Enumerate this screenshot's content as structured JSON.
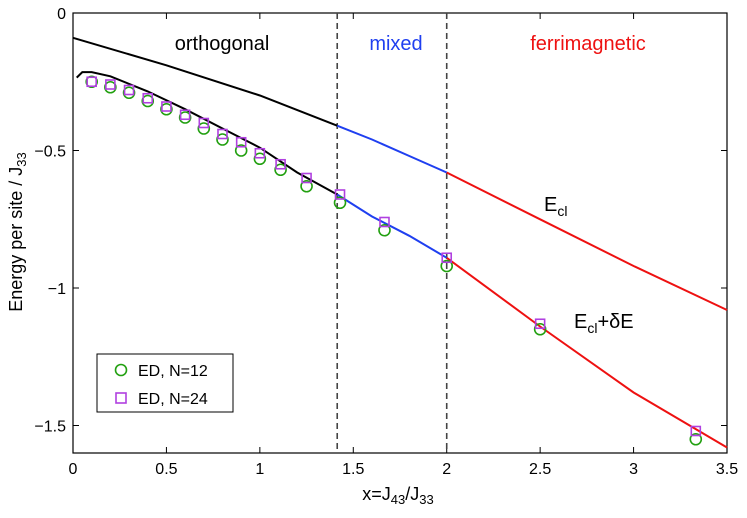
{
  "chart_data": {
    "type": "line",
    "xlim": [
      0,
      3.5
    ],
    "ylim": [
      -1.6,
      0
    ],
    "x_ticks": [
      "0",
      "0.5",
      "1",
      "1.5",
      "2",
      "2.5",
      "3",
      "3.5"
    ],
    "y_ticks": [
      "0",
      "−0.5",
      "−1",
      "−1.5"
    ],
    "x_tick_values": [
      0,
      0.5,
      1,
      1.5,
      2,
      2.5,
      3,
      3.5
    ],
    "y_tick_values": [
      0,
      -0.5,
      -1,
      -1.5
    ],
    "xlabel": {
      "main": "x=J",
      "sub1": "43",
      "mid": "/J",
      "sub2": "33"
    },
    "ylabel": {
      "main": "Energy per site / J",
      "sub": "33"
    },
    "phase_boundaries": [
      1.414,
      2.0
    ],
    "regions": [
      {
        "label": "orthogonal",
        "color": "#000000"
      },
      {
        "label": "mixed",
        "color": "#1f3ff0"
      },
      {
        "label": "ferrimagnetic",
        "color": "#ee1111"
      }
    ],
    "curve_labels": {
      "classical": {
        "main": "E",
        "sub": "cl"
      },
      "corrected": {
        "main": "E",
        "sub": "cl",
        "suffix": "+δE"
      }
    },
    "curves": [
      {
        "name": "E_cl",
        "segments": [
          {
            "color": "#000000",
            "points": [
              [
                0.0,
                -0.09
              ],
              [
                0.5,
                -0.19
              ],
              [
                1.0,
                -0.3
              ],
              [
                1.414,
                -0.41
              ]
            ]
          },
          {
            "color": "#1f3ff0",
            "points": [
              [
                1.414,
                -0.41
              ],
              [
                1.6,
                -0.46
              ],
              [
                1.8,
                -0.52
              ],
              [
                2.0,
                -0.58
              ]
            ]
          },
          {
            "color": "#ee1111",
            "points": [
              [
                2.0,
                -0.58
              ],
              [
                2.5,
                -0.75
              ],
              [
                3.0,
                -0.92
              ],
              [
                3.5,
                -1.08
              ]
            ]
          }
        ]
      },
      {
        "name": "E_cl+δE",
        "segments": [
          {
            "color": "#000000",
            "points": [
              [
                0.02,
                -0.235
              ],
              [
                0.05,
                -0.215
              ],
              [
                0.1,
                -0.215
              ],
              [
                0.2,
                -0.23
              ],
              [
                0.4,
                -0.285
              ],
              [
                0.6,
                -0.35
              ],
              [
                0.8,
                -0.42
              ],
              [
                1.0,
                -0.49
              ],
              [
                1.2,
                -0.58
              ],
              [
                1.414,
                -0.66
              ]
            ]
          },
          {
            "color": "#1f3ff0",
            "points": [
              [
                1.414,
                -0.66
              ],
              [
                1.6,
                -0.74
              ],
              [
                1.8,
                -0.81
              ],
              [
                2.0,
                -0.89
              ]
            ]
          },
          {
            "color": "#ee1111",
            "points": [
              [
                2.0,
                -0.89
              ],
              [
                2.5,
                -1.14
              ],
              [
                3.0,
                -1.38
              ],
              [
                3.5,
                -1.58
              ]
            ]
          }
        ]
      }
    ],
    "legend": {
      "position": "bottom-left",
      "items": [
        {
          "label": "ED, N=12",
          "marker": "circle",
          "color": "#22a010"
        },
        {
          "label": "ED, N=24",
          "marker": "square",
          "color": "#b040e0"
        }
      ]
    },
    "series": [
      {
        "name": "ED, N=12",
        "marker": "circle",
        "color": "#22a010",
        "x": [
          0.1,
          0.2,
          0.3,
          0.4,
          0.5,
          0.6,
          0.7,
          0.8,
          0.9,
          1.0,
          1.111,
          1.25,
          1.429,
          1.667,
          2.0,
          2.5,
          3.333
        ],
        "values": [
          -0.25,
          -0.27,
          -0.29,
          -0.32,
          -0.35,
          -0.38,
          -0.42,
          -0.46,
          -0.5,
          -0.53,
          -0.57,
          -0.63,
          -0.69,
          -0.79,
          -0.92,
          -1.15,
          -1.55
        ]
      },
      {
        "name": "ED, N=24",
        "marker": "square",
        "color": "#b040e0",
        "x": [
          0.1,
          0.2,
          0.3,
          0.4,
          0.5,
          0.6,
          0.7,
          0.8,
          0.9,
          1.0,
          1.111,
          1.25,
          1.429,
          1.667,
          2.0,
          2.5,
          3.333
        ],
        "values": [
          -0.25,
          -0.26,
          -0.28,
          -0.31,
          -0.34,
          -0.37,
          -0.4,
          -0.44,
          -0.47,
          -0.51,
          -0.55,
          -0.6,
          -0.66,
          -0.76,
          -0.89,
          -1.13,
          -1.52
        ]
      }
    ]
  }
}
